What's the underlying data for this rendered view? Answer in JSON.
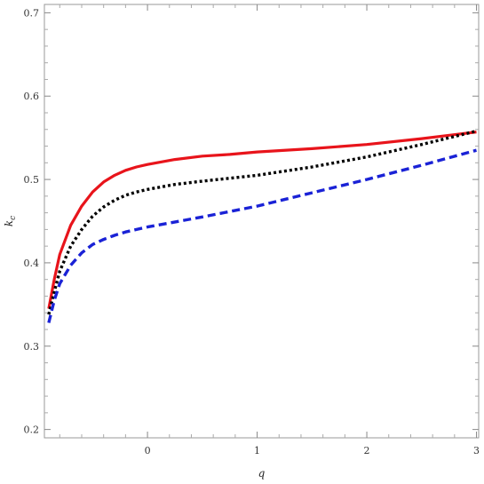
{
  "chart_data": {
    "type": "line",
    "title": "",
    "xlabel": "q",
    "ylabel": "k",
    "ylabel_sub": "c",
    "xlim": [
      -0.94,
      3.02
    ],
    "ylim": [
      0.19,
      0.71
    ],
    "x_ticks": [
      0,
      1,
      2,
      3
    ],
    "x_tick_labels": [
      "0",
      "1",
      "2",
      "3"
    ],
    "y_ticks": [
      0.2,
      0.3,
      0.4,
      0.5,
      0.6,
      0.7
    ],
    "y_tick_labels": [
      "0.2",
      "0.3",
      "0.4",
      "0.5",
      "0.6",
      "0.7"
    ],
    "grid": false,
    "legend": "none",
    "series": [
      {
        "color": "#e8141b",
        "style": "solid",
        "points": [
          [
            -0.9,
            0.345
          ],
          [
            -0.85,
            0.38
          ],
          [
            -0.8,
            0.41
          ],
          [
            -0.7,
            0.445
          ],
          [
            -0.6,
            0.468
          ],
          [
            -0.5,
            0.485
          ],
          [
            -0.4,
            0.497
          ],
          [
            -0.3,
            0.505
          ],
          [
            -0.2,
            0.511
          ],
          [
            -0.1,
            0.515
          ],
          [
            0,
            0.518
          ],
          [
            0.25,
            0.524
          ],
          [
            0.5,
            0.528
          ],
          [
            0.75,
            0.53
          ],
          [
            1,
            0.533
          ],
          [
            1.5,
            0.537
          ],
          [
            2,
            0.542
          ],
          [
            2.5,
            0.549
          ],
          [
            3,
            0.557
          ]
        ]
      },
      {
        "color": "#000000",
        "style": "dotted",
        "points": [
          [
            -0.9,
            0.338
          ],
          [
            -0.85,
            0.365
          ],
          [
            -0.8,
            0.39
          ],
          [
            -0.7,
            0.42
          ],
          [
            -0.6,
            0.44
          ],
          [
            -0.5,
            0.456
          ],
          [
            -0.4,
            0.467
          ],
          [
            -0.3,
            0.475
          ],
          [
            -0.2,
            0.481
          ],
          [
            -0.1,
            0.485
          ],
          [
            0,
            0.488
          ],
          [
            0.25,
            0.494
          ],
          [
            0.5,
            0.498
          ],
          [
            1,
            0.505
          ],
          [
            1.5,
            0.515
          ],
          [
            2,
            0.527
          ],
          [
            2.5,
            0.542
          ],
          [
            3,
            0.558
          ]
        ]
      },
      {
        "color": "#1a22d6",
        "style": "dashed",
        "points": [
          [
            -0.9,
            0.328
          ],
          [
            -0.85,
            0.355
          ],
          [
            -0.8,
            0.375
          ],
          [
            -0.7,
            0.397
          ],
          [
            -0.6,
            0.412
          ],
          [
            -0.5,
            0.422
          ],
          [
            -0.4,
            0.428
          ],
          [
            -0.3,
            0.433
          ],
          [
            -0.2,
            0.437
          ],
          [
            -0.1,
            0.44
          ],
          [
            0,
            0.443
          ],
          [
            0.5,
            0.455
          ],
          [
            1,
            0.468
          ],
          [
            1.5,
            0.484
          ],
          [
            2,
            0.5
          ],
          [
            2.5,
            0.517
          ],
          [
            3,
            0.535
          ]
        ]
      }
    ]
  }
}
